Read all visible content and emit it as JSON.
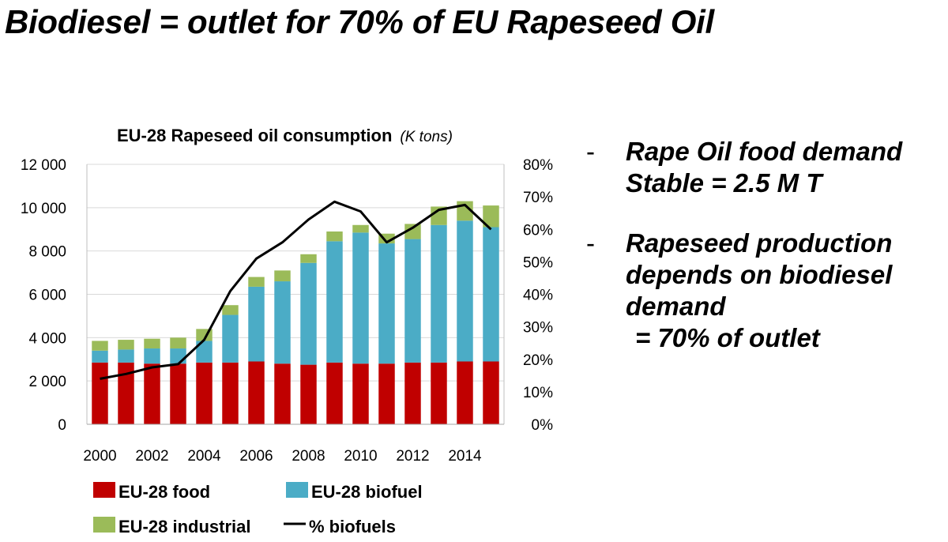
{
  "slide": {
    "title": "Biodiesel = outlet for 70% of EU Rapeseed Oil"
  },
  "bullets": [
    {
      "dash": "-",
      "lines": [
        "Rape Oil food demand",
        "Stable = 2.5 M T"
      ]
    },
    {
      "dash": "-",
      "lines": [
        "Rapeseed production",
        "depends on biodiesel",
        "demand",
        "= 70% of outlet"
      ]
    }
  ],
  "chart_data": {
    "type": "bar",
    "stacked": true,
    "title": "EU-28 Rapeseed oil consumption",
    "subtitle": "(K tons)",
    "x": [
      2000,
      2001,
      2002,
      2003,
      2004,
      2005,
      2006,
      2007,
      2008,
      2009,
      2010,
      2011,
      2012,
      2013,
      2014,
      2015
    ],
    "x_tick_labels": [
      "2000",
      "2002",
      "2004",
      "2006",
      "2008",
      "2010",
      "2012",
      "2014"
    ],
    "y_tick_labels": [
      "0",
      "2 000",
      "4 000",
      "6 000",
      "8 000",
      "10 000",
      "12 000"
    ],
    "y2_tick_labels": [
      "0%",
      "10%",
      "20%",
      "30%",
      "40%",
      "50%",
      "60%",
      "70%",
      "80%"
    ],
    "ylim": [
      0,
      12000
    ],
    "y2lim": [
      0,
      0.8
    ],
    "grid": true,
    "legend_position": "bottom",
    "series": [
      {
        "name": "EU-28 food",
        "axis": "left",
        "kind": "bar",
        "color": "#c00000",
        "values": [
          2850,
          2850,
          2800,
          2800,
          2850,
          2850,
          2900,
          2800,
          2750,
          2850,
          2800,
          2800,
          2850,
          2850,
          2900,
          2900
        ]
      },
      {
        "name": "EU-28 biofuel",
        "axis": "left",
        "kind": "bar",
        "color": "#4bacc6",
        "values": [
          550,
          600,
          700,
          700,
          1000,
          2200,
          3450,
          3800,
          4700,
          5600,
          6050,
          5550,
          5700,
          6350,
          6500,
          6200
        ]
      },
      {
        "name": "EU-28 industrial",
        "axis": "left",
        "kind": "bar",
        "color": "#9bbb59",
        "values": [
          450,
          450,
          450,
          500,
          550,
          450,
          450,
          500,
          400,
          450,
          350,
          450,
          700,
          850,
          900,
          1000
        ]
      },
      {
        "name": "% biofuels",
        "axis": "right",
        "kind": "line",
        "color": "#000000",
        "values": [
          0.14,
          0.155,
          0.175,
          0.185,
          0.26,
          0.41,
          0.51,
          0.56,
          0.63,
          0.685,
          0.655,
          0.56,
          0.605,
          0.66,
          0.675,
          0.6
        ]
      }
    ]
  }
}
